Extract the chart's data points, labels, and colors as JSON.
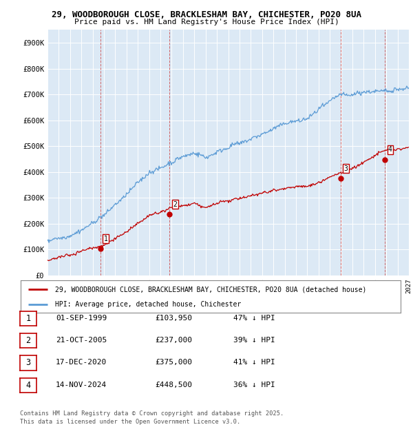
{
  "title_line1": "29, WOODBOROUGH CLOSE, BRACKLESHAM BAY, CHICHESTER, PO20 8UA",
  "title_line2": "Price paid vs. HM Land Registry's House Price Index (HPI)",
  "ylim": [
    0,
    950000
  ],
  "yticks": [
    0,
    100000,
    200000,
    300000,
    400000,
    500000,
    600000,
    700000,
    800000,
    900000
  ],
  "ytick_labels": [
    "£0",
    "£100K",
    "£200K",
    "£300K",
    "£400K",
    "£500K",
    "£600K",
    "£700K",
    "£800K",
    "£900K"
  ],
  "hpi_color": "#5b9bd5",
  "price_color": "#c00000",
  "bg_color": "#dce9f5",
  "sales": [
    {
      "year": 1999.67,
      "price": 103950,
      "label": "1"
    },
    {
      "year": 2005.81,
      "price": 237000,
      "label": "2"
    },
    {
      "year": 2020.96,
      "price": 375000,
      "label": "3"
    },
    {
      "year": 2024.87,
      "price": 448500,
      "label": "4"
    }
  ],
  "vline_years": [
    1999.67,
    2005.81,
    2020.96,
    2024.87
  ],
  "legend_entries": [
    "29, WOODBOROUGH CLOSE, BRACKLESHAM BAY, CHICHESTER, PO20 8UA (detached house)",
    "HPI: Average price, detached house, Chichester"
  ],
  "table_rows": [
    [
      "1",
      "01-SEP-1999",
      "£103,950",
      "47% ↓ HPI"
    ],
    [
      "2",
      "21-OCT-2005",
      "£237,000",
      "39% ↓ HPI"
    ],
    [
      "3",
      "17-DEC-2020",
      "£375,000",
      "41% ↓ HPI"
    ],
    [
      "4",
      "14-NOV-2024",
      "£448,500",
      "36% ↓ HPI"
    ]
  ],
  "footer": "Contains HM Land Registry data © Crown copyright and database right 2025.\nThis data is licensed under the Open Government Licence v3.0.",
  "xmin": 1995,
  "xmax": 2027
}
